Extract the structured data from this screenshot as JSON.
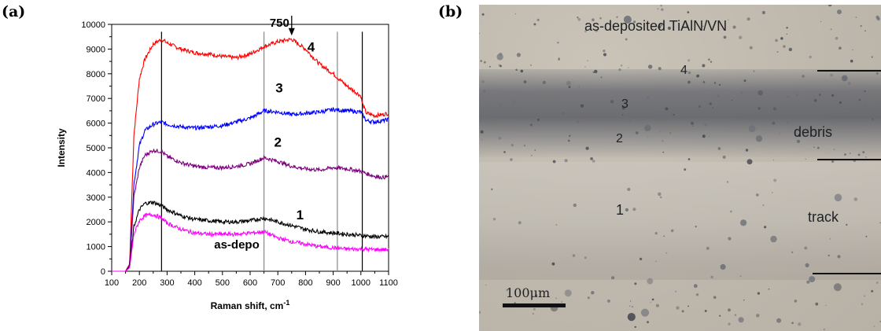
{
  "panel_a_label": "(a)",
  "panel_b_label": "(b)",
  "chart_data": {
    "type": "line",
    "xlabel": "Raman shift, cm",
    "xlabel_sup": "-1",
    "ylabel": "Intensity",
    "xlim": [
      100,
      1100
    ],
    "ylim": [
      0,
      10000
    ],
    "x_ticks": [
      "100",
      "200",
      "300",
      "400",
      "500",
      "600",
      "700",
      "800",
      "900",
      "1000",
      "1100"
    ],
    "y_ticks": [
      "0",
      "1000",
      "2000",
      "3000",
      "4000",
      "5000",
      "6000",
      "7000",
      "8000",
      "9000",
      "10000"
    ],
    "grid": false,
    "vertical_lines": [
      {
        "x": 280,
        "color": "#000000"
      },
      {
        "x": 650,
        "color": "#888888"
      },
      {
        "x": 915,
        "color": "#888888"
      },
      {
        "x": 1005,
        "color": "#000000"
      }
    ],
    "arrow_annotation": {
      "label": "750",
      "x": 750
    },
    "series": [
      {
        "name": "4",
        "color": "#ff0000",
        "x": [
          100,
          150,
          165,
          180,
          200,
          220,
          250,
          280,
          300,
          350,
          400,
          450,
          500,
          550,
          600,
          650,
          700,
          750,
          800,
          850,
          900,
          950,
          1000,
          1005,
          1020,
          1050,
          1080,
          1100
        ],
        "y": [
          0,
          0,
          300,
          5500,
          7800,
          8600,
          9200,
          9400,
          9250,
          9000,
          8850,
          8800,
          8700,
          8650,
          8800,
          9100,
          9300,
          9400,
          9000,
          8400,
          8000,
          7500,
          7100,
          6800,
          6400,
          6300,
          6350,
          6400
        ]
      },
      {
        "name": "3",
        "color": "#0000ff",
        "x": [
          100,
          150,
          165,
          180,
          200,
          220,
          250,
          280,
          300,
          350,
          400,
          450,
          500,
          550,
          600,
          650,
          700,
          750,
          800,
          850,
          900,
          950,
          1000,
          1005,
          1020,
          1050,
          1080,
          1100
        ],
        "y": [
          0,
          0,
          250,
          3500,
          5100,
          5700,
          5950,
          6050,
          5950,
          5850,
          5800,
          5850,
          5900,
          6050,
          6200,
          6500,
          6450,
          6350,
          6400,
          6450,
          6550,
          6500,
          6450,
          6350,
          6100,
          6050,
          6100,
          6150
        ]
      },
      {
        "name": "2",
        "color": "#800080",
        "x": [
          100,
          150,
          165,
          180,
          200,
          220,
          250,
          280,
          300,
          350,
          400,
          450,
          500,
          550,
          600,
          650,
          700,
          750,
          800,
          850,
          900,
          950,
          1000,
          1020,
          1050,
          1080,
          1100
        ],
        "y": [
          0,
          0,
          250,
          3000,
          4200,
          4700,
          4900,
          4850,
          4650,
          4400,
          4250,
          4200,
          4200,
          4250,
          4350,
          4600,
          4450,
          4250,
          4150,
          4100,
          4200,
          4150,
          4050,
          3950,
          3850,
          3800,
          3850
        ]
      },
      {
        "name": "1",
        "color": "#000000",
        "x": [
          100,
          150,
          165,
          180,
          200,
          220,
          250,
          280,
          300,
          350,
          400,
          450,
          500,
          550,
          600,
          650,
          700,
          750,
          800,
          850,
          900,
          950,
          1000,
          1050,
          1100
        ],
        "y": [
          0,
          0,
          200,
          1800,
          2500,
          2750,
          2800,
          2650,
          2500,
          2250,
          2100,
          2050,
          2000,
          2000,
          2050,
          2150,
          2000,
          1850,
          1700,
          1600,
          1550,
          1500,
          1450,
          1400,
          1400
        ]
      },
      {
        "name": "as-depo",
        "color": "#ff00ff",
        "x": [
          100,
          150,
          165,
          180,
          200,
          220,
          250,
          280,
          300,
          350,
          400,
          450,
          500,
          550,
          600,
          650,
          700,
          750,
          800,
          850,
          900,
          950,
          1000,
          1050,
          1100
        ],
        "y": [
          0,
          0,
          150,
          1500,
          2050,
          2250,
          2300,
          2150,
          1950,
          1700,
          1550,
          1500,
          1500,
          1500,
          1550,
          1600,
          1350,
          1200,
          1100,
          1000,
          950,
          900,
          900,
          880,
          870
        ]
      }
    ]
  },
  "micrograph": {
    "title": "as-deposited TiAlN/VN",
    "label_debris": "debris",
    "label_track": "track",
    "scale_bar": "100μm",
    "point_labels": [
      "4",
      "3",
      "2",
      "1"
    ]
  }
}
